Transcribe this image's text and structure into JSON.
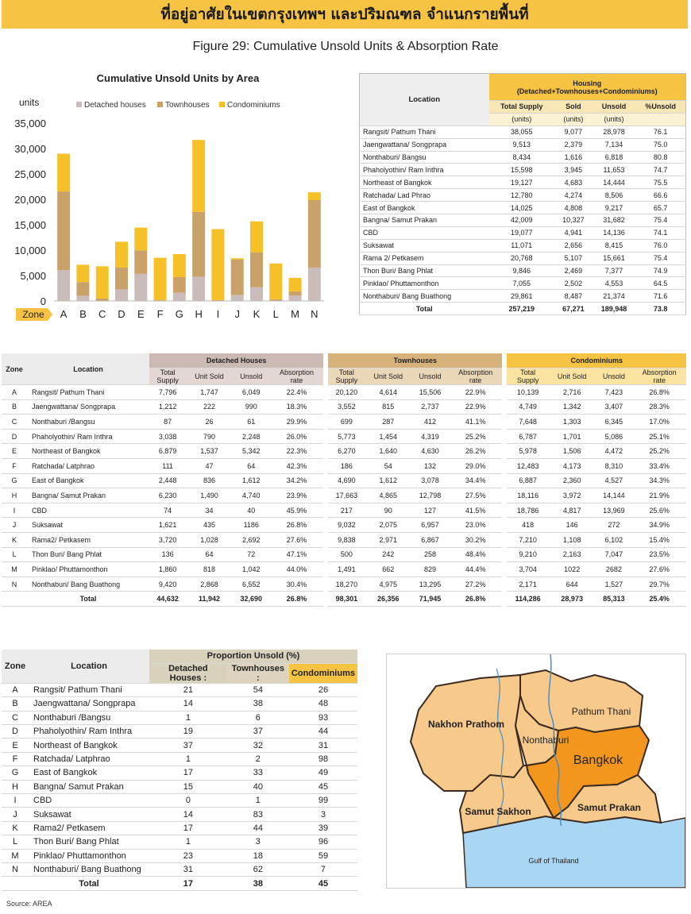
{
  "banner": {
    "title": "ที่อยู่อาศัยในเขตกรุงเทพฯ และปริมณฑล จำแนกรายพื้นที่"
  },
  "figure_title": "Figure 29: Cumulative Unsold Units & Absorption Rate",
  "chart_data": {
    "type": "bar",
    "stacked": true,
    "title": "Cumulative Unsold Units by Area",
    "ylabel": "units",
    "xlabel": "Zone",
    "categories": [
      "A",
      "B",
      "C",
      "D",
      "E",
      "F",
      "G",
      "H",
      "I",
      "J",
      "K",
      "L",
      "M",
      "N"
    ],
    "series": [
      {
        "name": "Detached houses",
        "color": "#cbbcbc",
        "values": [
          6049,
          990,
          61,
          2248,
          5342,
          64,
          1612,
          4740,
          40,
          1186,
          2692,
          72,
          1042,
          6552
        ]
      },
      {
        "name": "Townhouses",
        "color": "#c9a26a",
        "values": [
          15506,
          2737,
          412,
          4319,
          4630,
          132,
          3078,
          12798,
          127,
          6957,
          6867,
          258,
          829,
          13295
        ]
      },
      {
        "name": "Condominiums",
        "color": "#f6c028",
        "values": [
          7423,
          3407,
          6345,
          5086,
          4472,
          8310,
          4527,
          14144,
          13969,
          272,
          6102,
          7047,
          2682,
          1527
        ]
      }
    ],
    "ylim": [
      0,
      35000
    ],
    "yticks": [
      "0",
      "5,000",
      "10,000",
      "15,000",
      "20,000",
      "25,000",
      "30,000",
      "35,000"
    ],
    "legend_position": "top",
    "grid": false
  },
  "table1": {
    "location_header": "Location",
    "group_header": "Housing",
    "group_subheader": "(Detached+Townhouses+Condominiums)",
    "col_headers": [
      "Total Supply",
      "Sold",
      "Unsold",
      "%Unsold"
    ],
    "units": [
      "(units)",
      "(units)",
      "(units)",
      ""
    ],
    "rows": [
      [
        "Rangsit/ Pathum Thani",
        "38,055",
        "9,077",
        "28,978",
        "76.1"
      ],
      [
        "Jaengwattana/ Songprapa",
        "9,513",
        "2,379",
        "7,134",
        "75.0"
      ],
      [
        "Nonthaburi/ Bangsu",
        "8,434",
        "1,616",
        "6,818",
        "80.8"
      ],
      [
        "Phaholyothin/ Ram Inthra",
        "15,598",
        "3,945",
        "11,653",
        "74.7"
      ],
      [
        "Northeast of Bangkok",
        "19,127",
        "4,683",
        "14,444",
        "75.5"
      ],
      [
        "Ratchada/ Lad Phrao",
        "12,780",
        "4,274",
        "8,506",
        "66.6"
      ],
      [
        "East of Bangkok",
        "14,025",
        "4,808",
        "9,217",
        "65.7"
      ],
      [
        "Bangna/ Samut Prakan",
        "42,009",
        "10,327",
        "31,682",
        "75.4"
      ],
      [
        "CBD",
        "19,077",
        "4,941",
        "14,136",
        "74.1"
      ],
      [
        "Suksawat",
        "11,071",
        "2,656",
        "8,415",
        "76.0"
      ],
      [
        "Rama 2/ Petkasem",
        "20,768",
        "5,107",
        "15,661",
        "75.4"
      ],
      [
        "Thon Buri/ Bang Phlat",
        "9,846",
        "2,469",
        "7,377",
        "74.9"
      ],
      [
        "Pinklao/ Phuttamonthon",
        "7,055",
        "2,502",
        "4,553",
        "64.5"
      ],
      [
        "Nonthaburi/  Bang Buathong",
        "29,861",
        "8,487",
        "21,374",
        "71.6"
      ]
    ],
    "total": [
      "Total",
      "257,219",
      "67,271",
      "189,948",
      "73.8"
    ]
  },
  "table2": {
    "zone_header": "Zone",
    "location_header": "Location",
    "groups": [
      "Detached Houses",
      "Townhouses",
      "Condominiums"
    ],
    "sub_headers": {
      "supply": [
        "Total",
        "Supply"
      ],
      "sold": "Unit Sold",
      "unsold": "Unsold",
      "rate": [
        "Absorption",
        "rate"
      ]
    },
    "rows": [
      [
        "A",
        "Rangsit/ Pathum Thani",
        "7,796",
        "1,747",
        "6,049",
        "22.4%",
        "20,120",
        "4,614",
        "15,506",
        "22.9%",
        "10,139",
        "2,716",
        "7,423",
        "26.8%"
      ],
      [
        "B",
        "Jaengwattana/ Songprapa",
        "1,212",
        "222",
        "990",
        "18.3%",
        "3,552",
        "815",
        "2,737",
        "22.9%",
        "4,749",
        "1,342",
        "3,407",
        "28.3%"
      ],
      [
        "C",
        "Nonthaburi /Bangsu",
        "87",
        "26",
        "61",
        "29.9%",
        "699",
        "287",
        "412",
        "41.1%",
        "7,648",
        "1,303",
        "6,345",
        "17.0%"
      ],
      [
        "D",
        "Phaholyothin/ Ram Inthra",
        "3,038",
        "790",
        "2,248",
        "26.0%",
        "5,773",
        "1,454",
        "4,319",
        "25.2%",
        "6,787",
        "1,701",
        "5,086",
        "25.1%"
      ],
      [
        "E",
        "Northeast of Bangkok",
        "6,879",
        "1,537",
        "5,342",
        "22.3%",
        "6,270",
        "1,640",
        "4,630",
        "26.2%",
        "5,978",
        "1,506",
        "4,472",
        "25.2%"
      ],
      [
        "F",
        "Ratchada/ Latphrao",
        "111",
        "47",
        "64",
        "42.3%",
        "186",
        "54",
        "132",
        "29.0%",
        "12,483",
        "4,173",
        "8,310",
        "33.4%"
      ],
      [
        "G",
        "East of Bangkok",
        "2,448",
        "836",
        "1,612",
        "34.2%",
        "4,690",
        "1,612",
        "3,078",
        "34.4%",
        "6,887",
        "2,360",
        "4,527",
        "34.3%"
      ],
      [
        "H",
        "Bangna/ Samut Prakan",
        "6,230",
        "1,490",
        "4,740",
        "23.9%",
        "17,663",
        "4,865",
        "12,798",
        "27.5%",
        "18,116",
        "3,972",
        "14,144",
        "21.9%"
      ],
      [
        "I",
        "CBD",
        "74",
        "34",
        "40",
        "45.9%",
        "217",
        "90",
        "127",
        "41.5%",
        "18,786",
        "4,817",
        "13,969",
        "25.6%"
      ],
      [
        "J",
        "Suksawat",
        "1,621",
        "435",
        "1186",
        "26.8%",
        "9,032",
        "2,075",
        "6,957",
        "23.0%",
        "418",
        "146",
        "272",
        "34.9%"
      ],
      [
        "K",
        "Rama2/ Petkasem",
        "3,720",
        "1,028",
        "2,692",
        "27.6%",
        "9,838",
        "2,971",
        "6,867",
        "30.2%",
        "7,210",
        "1,108",
        "6,102",
        "15.4%"
      ],
      [
        "L",
        "Thon Buri/ Bang Phlat",
        "136",
        "64",
        "72",
        "47.1%",
        "500",
        "242",
        "258",
        "48.4%",
        "9,210",
        "2,163",
        "7,047",
        "23.5%"
      ],
      [
        "M",
        "Pinklao/ Phuttamonthon",
        "1,860",
        "818",
        "1,042",
        "44.0%",
        "1,491",
        "662",
        "829",
        "44.4%",
        "3,704",
        "1022",
        "2682",
        "27.6%"
      ],
      [
        "N",
        "Nonthaburi/  Bang Buathong",
        "9,420",
        "2,868",
        "6,552",
        "30.4%",
        "18,270",
        "4,975",
        "13,295",
        "27.2%",
        "2,171",
        "644",
        "1,527",
        "29.7%"
      ]
    ],
    "total": [
      "",
      "Total",
      "44,632",
      "11,942",
      "32,690",
      "26.8%",
      "98,301",
      "26,356",
      "71,945",
      "26.8%",
      "114,286",
      "28,973",
      "85,313",
      "25.4%"
    ]
  },
  "table3": {
    "zone_header": "Zone",
    "location_header": "Location",
    "group_header": "Proportion Unsold (%)",
    "sub_headers": [
      "Detached Houses",
      "Townhouses",
      "Condominiums"
    ],
    "separator": ":",
    "rows": [
      [
        "A",
        "Rangsit/ Pathum Thani",
        "21",
        "54",
        "26"
      ],
      [
        "B",
        "Jaengwattana/ Songprapa",
        "14",
        "38",
        "48"
      ],
      [
        "C",
        "Nonthaburi /Bangsu",
        "1",
        "6",
        "93"
      ],
      [
        "D",
        "Phaholyothin/ Ram Inthra",
        "19",
        "37",
        "44"
      ],
      [
        "E",
        "Northeast of Bangkok",
        "37",
        "32",
        "31"
      ],
      [
        "F",
        "Ratchada/ Latphrao",
        "1",
        "2",
        "98"
      ],
      [
        "G",
        "East of Bangkok",
        "17",
        "33",
        "49"
      ],
      [
        "H",
        "Bangna/ Samut Prakan",
        "15",
        "40",
        "45"
      ],
      [
        "I",
        "CBD",
        "0",
        "1",
        "99"
      ],
      [
        "J",
        "Suksawat",
        "14",
        "83",
        "3"
      ],
      [
        "K",
        "Rama2/ Petkasem",
        "17",
        "44",
        "39"
      ],
      [
        "L",
        "Thon Buri/ Bang Phlat",
        "1",
        "3",
        "96"
      ],
      [
        "M",
        "Pinklao/ Phuttamonthon",
        "23",
        "18",
        "59"
      ],
      [
        "N",
        "Nonthaburi/  Bang Buathong",
        "31",
        "62",
        "7"
      ]
    ],
    "total": [
      "",
      "Total",
      "17",
      "38",
      "45"
    ]
  },
  "map": {
    "labels": {
      "nakhon": "Nakhon Prathom",
      "pathum": "Pathum Thani",
      "nonthaburi": "Nonthaburi",
      "bangkok": "Bangkok",
      "sakhon": "Samut Sakhon",
      "prakan": "Samut Prakan",
      "gulf": "Gulf of Thailand"
    },
    "colors": {
      "province": "#f7c98a",
      "bangkok": "#f2961e",
      "sea": "#a9d6f3",
      "border": "#3a2a20"
    }
  },
  "source": "Source: AREA"
}
